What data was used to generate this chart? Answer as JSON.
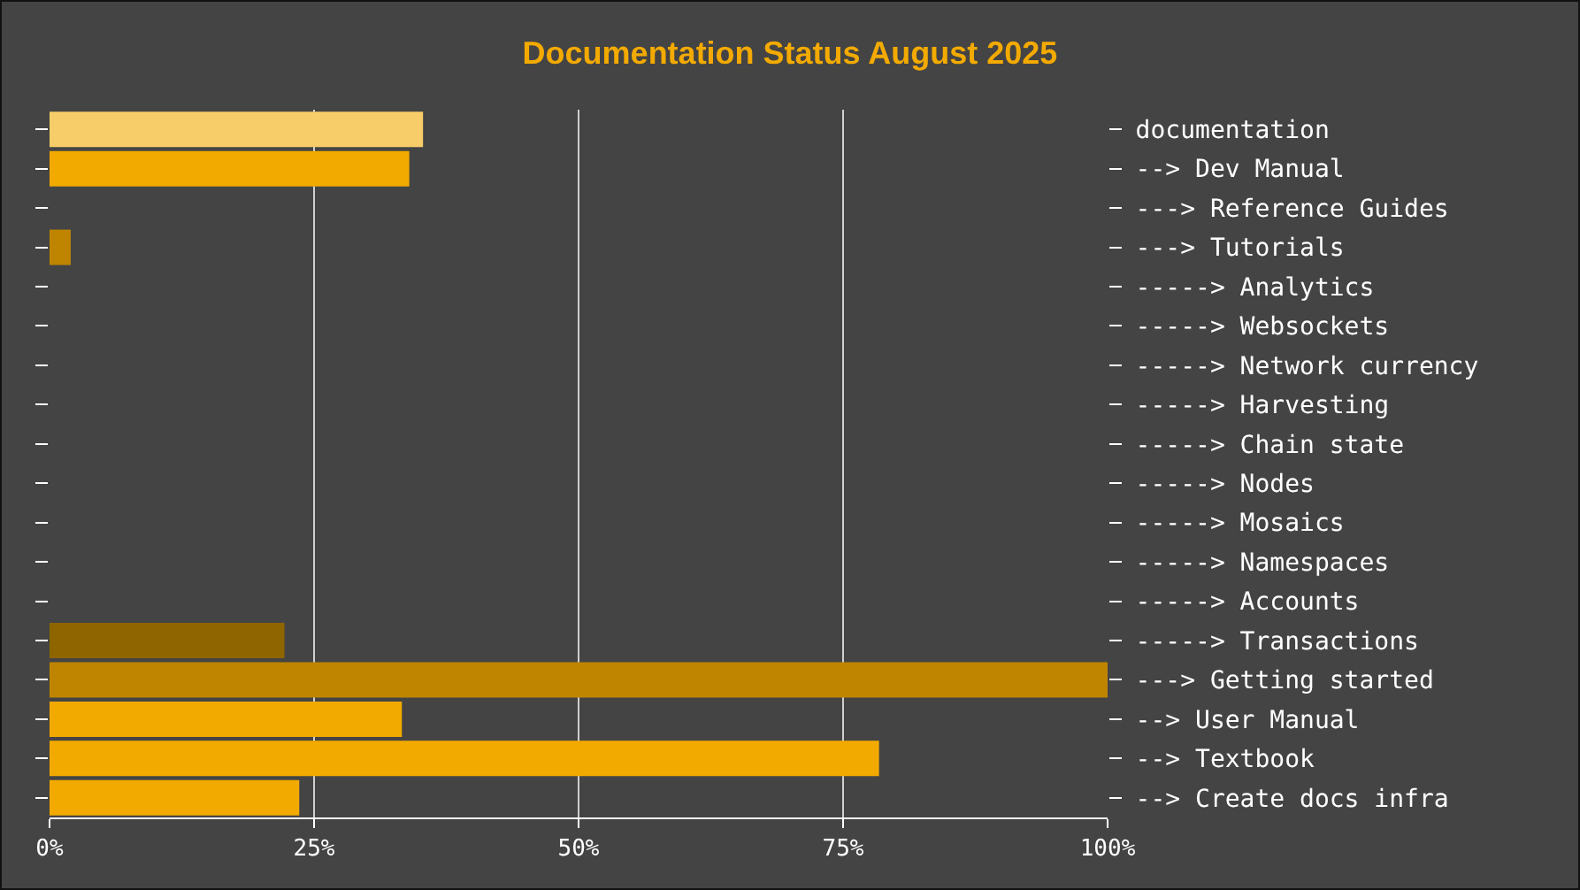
{
  "chart_data": {
    "type": "bar",
    "orientation": "horizontal",
    "title": "Documentation Status August 2025",
    "categories": [
      "documentation",
      "--> Dev Manual",
      "---> Reference Guides",
      "---> Tutorials",
      "-----> Analytics",
      "-----> Websockets",
      "-----> Network currency",
      "-----> Harvesting",
      "-----> Chain state",
      "-----> Nodes",
      "-----> Mosaics",
      "-----> Namespaces",
      "-----> Accounts",
      "-----> Transactions",
      "---> Getting started",
      "--> User Manual",
      "--> Textbook",
      "--> Create docs infra"
    ],
    "values": [
      35.3,
      34,
      0,
      2,
      0,
      0,
      0,
      0,
      0,
      0,
      0,
      0,
      0,
      22.2,
      100,
      33.3,
      78.4,
      23.6
    ],
    "colors": [
      "#f7cd6a",
      "#f3aa00",
      "#bf8500",
      "#bf8500",
      "#8f6500",
      "#8f6500",
      "#8f6500",
      "#8f6500",
      "#8f6500",
      "#8f6500",
      "#8f6500",
      "#8f6500",
      "#8f6500",
      "#8f6500",
      "#bf8500",
      "#f3aa00",
      "#f3aa00",
      "#f3aa00"
    ],
    "xlim": [
      0,
      100
    ],
    "xticks": [
      {
        "value": 0,
        "label": "0%"
      },
      {
        "value": 25,
        "label": "25%"
      },
      {
        "value": 50,
        "label": "50%"
      },
      {
        "value": 75,
        "label": "75%"
      },
      {
        "value": 100,
        "label": "100%"
      }
    ],
    "grid": "x"
  }
}
